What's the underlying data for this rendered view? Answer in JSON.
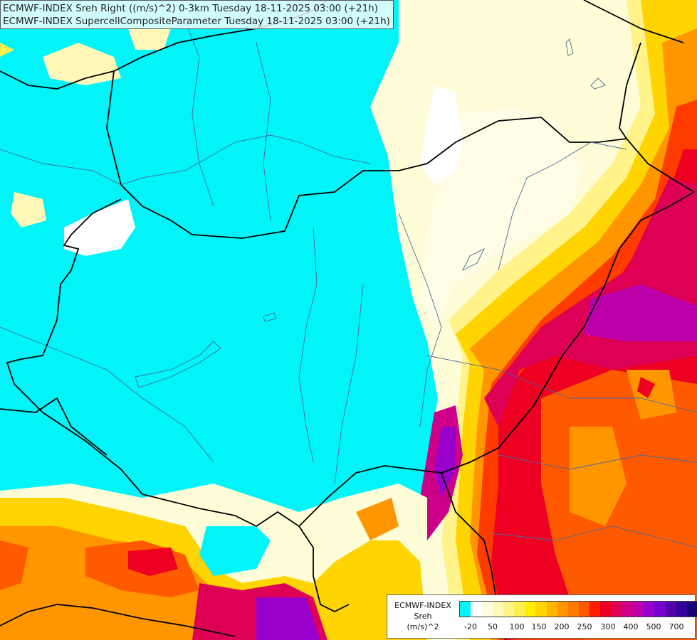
{
  "titles": {
    "line1": "ECMWF-INDEX Sreh Right ((m/s)^2) 0-3km Tuesday 18-11-2025 03:00 (+21h)",
    "line2": "ECMWF-INDEX SupercellCompositeParameter Tuesday 18-11-2025 03:00 (+21h)"
  },
  "legend": {
    "model": "ECMWF-INDEX",
    "field": "Sreh",
    "unit": "(m/s)^2",
    "colors": [
      "#00f4f8",
      "#ffffff",
      "#fffde0",
      "#fff8b8",
      "#fff38a",
      "#fff050",
      "#fff000",
      "#ffd400",
      "#ffb400",
      "#ff9600",
      "#ff7800",
      "#ff5a00",
      "#ff1e00",
      "#ee0022",
      "#dd0055",
      "#cc0088",
      "#bb00aa",
      "#9900cc",
      "#7700cc",
      "#5500aa",
      "#330099",
      "#1a0077",
      "#000066"
    ],
    "ticks": [
      "-20",
      "50",
      "100",
      "150",
      "200",
      "250",
      "300",
      "400",
      "500",
      "700"
    ]
  },
  "colors": {
    "background": "#00f4f8",
    "border_line": "#000000",
    "river_line": "#4a6a9a"
  }
}
